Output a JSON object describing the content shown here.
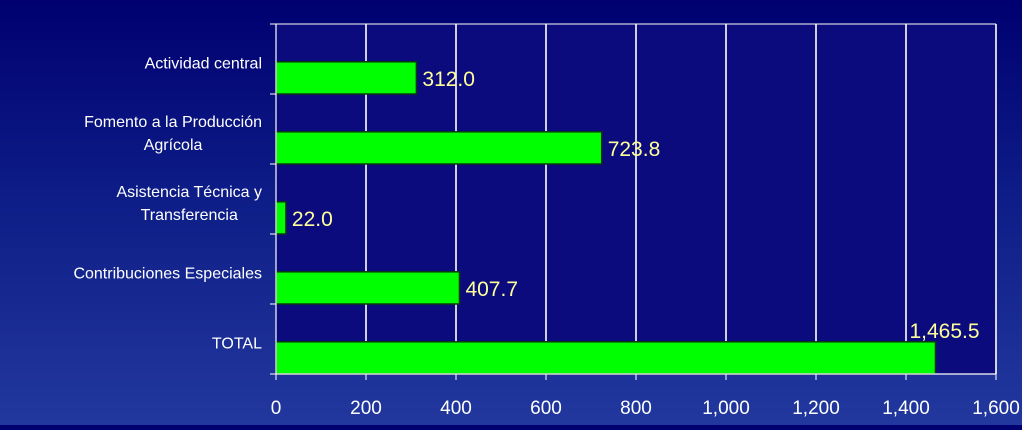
{
  "chart_data": {
    "type": "bar",
    "orientation": "horizontal",
    "categories": [
      [
        "Actividad central"
      ],
      [
        "Fomento a la Producción",
        "Agrícola"
      ],
      [
        "Asistencia Técnica y",
        "Transferencia"
      ],
      [
        "Contribuciones Especiales"
      ],
      [
        "TOTAL"
      ]
    ],
    "values": [
      312.0,
      723.8,
      22.0,
      407.7,
      1465.5
    ],
    "data_labels": [
      "312.0",
      "723.8",
      "22.0",
      "407.7",
      "1,465.5"
    ],
    "x_ticks": [
      "0",
      "200",
      "400",
      "600",
      "800",
      "1,000",
      "1,200",
      "1,400",
      "1,600"
    ],
    "xlim": [
      0,
      1600
    ],
    "grid": true,
    "legend": "none",
    "colors": {
      "bar": "#00ff00",
      "bar_edge": "#0a3a0a",
      "plot_background": "#0b0b7e",
      "gridline": "#ffffff",
      "data_label": "#ffff99",
      "axis_text": "#ffffff"
    }
  }
}
